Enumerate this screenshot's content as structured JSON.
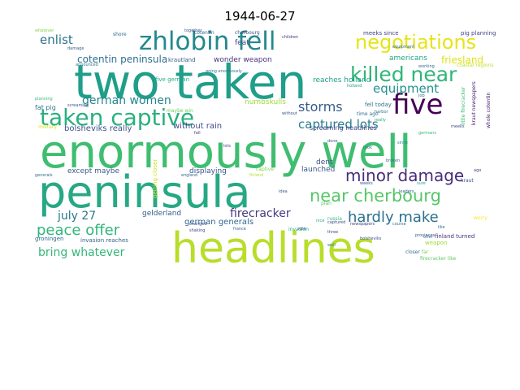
{
  "title": "1944-06-27",
  "words": [
    {
      "text": "enormously well",
      "color": "#3fbd70",
      "rot": 0
    },
    {
      "text": "peninsula",
      "color": "#26a884",
      "rot": 0
    },
    {
      "text": "headlines",
      "color": "#b8dd2b",
      "rot": 0
    },
    {
      "text": "two taken",
      "color": "#1f9e89",
      "rot": 0
    },
    {
      "text": "zhlobin fell",
      "color": "#23898e",
      "rot": 0
    },
    {
      "text": "taken captive",
      "color": "#2ab07f",
      "rot": 0
    },
    {
      "text": "five",
      "color": "#440154",
      "rot": 0
    },
    {
      "text": "negotiations",
      "color": "#e6e419",
      "rot": 0
    },
    {
      "text": "killed near",
      "color": "#30b57a",
      "rot": 0
    },
    {
      "text": "near cherbourg",
      "color": "#55c667",
      "rot": 0
    },
    {
      "text": "minor damage",
      "color": "#472d7b",
      "rot": 0
    },
    {
      "text": "hardly make",
      "color": "#2d708e",
      "rot": 0
    },
    {
      "text": "peace offer",
      "color": "#31b57b",
      "rot": 0
    },
    {
      "text": "captured lots",
      "color": "#287c8e",
      "rot": 0
    },
    {
      "text": "equipment",
      "color": "#21918c",
      "rot": 0
    },
    {
      "text": "german women",
      "color": "#25858e",
      "rot": 0
    },
    {
      "text": "storms",
      "color": "#365c8d",
      "rot": 0
    },
    {
      "text": "enlist",
      "color": "#2c728e",
      "rot": 0
    },
    {
      "text": "july 27",
      "color": "#2a788e",
      "rot": 0
    },
    {
      "text": "bring whatever",
      "color": "#35b779",
      "rot": 0
    },
    {
      "text": "firecracker",
      "color": "#443a83",
      "rot": 0
    },
    {
      "text": "cotentin peninsula",
      "color": "#2e6f8e",
      "rot": 0
    },
    {
      "text": "friesland",
      "color": "#dde318",
      "rot": 0
    },
    {
      "text": "german generals",
      "color": "#31688e",
      "rot": 0
    },
    {
      "text": "bolsheviks really",
      "color": "#3b528b",
      "rot": 0
    },
    {
      "text": "without rain",
      "color": "#3e4a89",
      "rot": 0
    },
    {
      "text": "wonder weapon",
      "color": "#46337f",
      "rot": 0
    },
    {
      "text": "krautland",
      "color": "#38588c",
      "rot": 0
    },
    {
      "text": "feat",
      "color": "#3f4889",
      "rot": 0
    },
    {
      "text": "gelderland",
      "color": "#34608d",
      "rot": 0
    },
    {
      "text": "launched",
      "color": "#3a548c",
      "rot": 0
    },
    {
      "text": "displaying",
      "color": "#39558c",
      "rot": 0
    },
    {
      "text": "except maybe",
      "color": "#375b8d",
      "rot": 0
    },
    {
      "text": "dent",
      "color": "#3d4d8a",
      "rot": 0
    },
    {
      "text": "numbskulls",
      "color": "#9bd93c",
      "rot": 0
    },
    {
      "text": "americans",
      "color": "#20a486",
      "rot": 0
    },
    {
      "text": "reaches holland",
      "color": "#1fa088",
      "rot": 0
    },
    {
      "text": "fat pig",
      "color": "#2b758e",
      "rot": 0
    },
    {
      "text": "groningen",
      "color": "#306a8e",
      "rot": 0
    },
    {
      "text": "invasion reaches",
      "color": "#34618d",
      "rot": 0
    },
    {
      "text": "screaming headlines",
      "color": "#3e4989",
      "rot": 0
    },
    {
      "text": "fell today",
      "color": "#2a768e",
      "rot": 0
    },
    {
      "text": "pig planning",
      "color": "#414487",
      "rot": 0
    },
    {
      "text": "meeks since",
      "color": "#433e85",
      "rot": 0
    },
    {
      "text": "cotentin",
      "color": "#32658e",
      "rot": 0
    },
    {
      "text": "cherbourg",
      "color": "#3c4f8a",
      "rot": 0
    },
    {
      "text": "five german",
      "color": "#23a983",
      "rot": 0
    },
    {
      "text": "getting closer",
      "color": "#cae11f",
      "rot": 270
    },
    {
      "text": "finland turned",
      "color": "#46307e",
      "rot": 0
    },
    {
      "text": "weapon",
      "color": "#a2da37",
      "rot": 0
    },
    {
      "text": "firecracker like",
      "color": "#5ec962",
      "rot": 0
    },
    {
      "text": "kraut newspapers",
      "color": "#482374",
      "rot": 270
    },
    {
      "text": "whole cotentin",
      "color": "#481a6c",
      "rot": 270
    },
    {
      "text": "little firecracker",
      "color": "#3dbc74",
      "rot": 270
    },
    {
      "text": "coastal regions",
      "color": "#c0df25",
      "rot": 0
    },
    {
      "text": "time ago",
      "color": "#2c738e",
      "rot": 0
    },
    {
      "text": "maybe win",
      "color": "#6ece58",
      "rot": 0
    },
    {
      "text": "captive",
      "color": "#7fd34e",
      "rot": 0
    },
    {
      "text": "military",
      "color": "#d8e219",
      "rot": 0
    },
    {
      "text": "shore",
      "color": "#2e6e8e",
      "rot": 0
    },
    {
      "text": "together",
      "color": "#3b518b",
      "rot": 0
    },
    {
      "text": "children",
      "color": "#453781",
      "rot": 0
    },
    {
      "text": "kraut",
      "color": "#3b528b",
      "rot": 0
    },
    {
      "text": "finland",
      "color": "#b5de2b",
      "rot": 0
    },
    {
      "text": "holland",
      "color": "#1e9b8a",
      "rot": 0
    },
    {
      "text": "england",
      "color": "#31678e",
      "rot": 0
    },
    {
      "text": "generals",
      "color": "#2f6c8e",
      "rot": 0
    },
    {
      "text": "plan",
      "color": "#5ac864",
      "rot": 0
    },
    {
      "text": "russia",
      "color": "#3aba76",
      "rot": 0
    },
    {
      "text": "broken",
      "color": "#30698e",
      "rot": 0
    },
    {
      "text": "captured",
      "color": "#3c4f8a",
      "rot": 0
    },
    {
      "text": "newspapers",
      "color": "#424086",
      "rot": 0
    },
    {
      "text": "course",
      "color": "#2a778e",
      "rot": 0
    },
    {
      "text": "done",
      "color": "#355f8d",
      "rot": 0
    },
    {
      "text": "well",
      "color": "#26828e",
      "rot": 0
    },
    {
      "text": "three",
      "color": "#3e4c8a",
      "rot": 0
    },
    {
      "text": "closer",
      "color": "#2d718e",
      "rot": 0
    },
    {
      "text": "far",
      "color": "#7ad151",
      "rot": 0
    },
    {
      "text": "ago",
      "color": "#414287",
      "rot": 0
    },
    {
      "text": "worry",
      "color": "#fde725",
      "rot": 0
    },
    {
      "text": "damage",
      "color": "#34608d",
      "rot": 0
    },
    {
      "text": "announced",
      "color": "#2c718e",
      "rot": 0
    },
    {
      "text": "shaking",
      "color": "#3f4788",
      "rot": 0
    },
    {
      "text": "changed",
      "color": "#414487",
      "rot": 0
    },
    {
      "text": "france",
      "color": "#306a8e",
      "rot": 0
    },
    {
      "text": "working",
      "color": "#2f6b8e",
      "rot": 0
    },
    {
      "text": "going enormously",
      "color": "#2c728e",
      "rot": 0
    },
    {
      "text": "whatever",
      "color": "#84d44b",
      "rot": 0
    },
    {
      "text": "sure",
      "color": "#22a785",
      "rot": 0
    },
    {
      "text": "job",
      "color": "#2d708e",
      "rot": 0
    },
    {
      "text": "rain",
      "color": "#443983",
      "rot": 0
    },
    {
      "text": "invasion",
      "color": "#21a585",
      "rot": 0
    },
    {
      "text": "provinces",
      "color": "#3b528b",
      "rot": 0
    },
    {
      "text": "offer",
      "color": "#2e6d8e",
      "rot": 0
    },
    {
      "text": "like",
      "color": "#2c738e",
      "rot": 0
    },
    {
      "text": "fall",
      "color": "#46307e",
      "rot": 0
    },
    {
      "text": "planning",
      "color": "#37b878",
      "rot": 0
    },
    {
      "text": "screaming",
      "color": "#39558c",
      "rot": 0
    },
    {
      "text": "without",
      "color": "#3b528b",
      "rot": 0
    },
    {
      "text": "bolsheviks",
      "color": "#3c508b",
      "rot": 0
    },
    {
      "text": "harbor",
      "color": "#2b748e",
      "rot": 0
    },
    {
      "text": "really",
      "color": "#28ae80",
      "rot": 0
    },
    {
      "text": "meeks",
      "color": "#3d4e8a",
      "rot": 0
    },
    {
      "text": "germans",
      "color": "#36b677",
      "rot": 0
    },
    {
      "text": "since",
      "color": "#24868e",
      "rot": 0
    },
    {
      "text": "lots",
      "color": "#3f4788",
      "rot": 0
    },
    {
      "text": "equipment",
      "color": "#2f6c8e",
      "rot": 0
    },
    {
      "text": "weeks",
      "color": "#355f8d",
      "rot": 0
    },
    {
      "text": "idea",
      "color": "#3a548c",
      "rot": 0
    },
    {
      "text": "took",
      "color": "#2a788e",
      "rot": 0
    },
    {
      "text": "nice",
      "color": "#25ab82",
      "rot": 0
    },
    {
      "text": "leaders",
      "color": "#32648e",
      "rot": 0
    }
  ]
}
